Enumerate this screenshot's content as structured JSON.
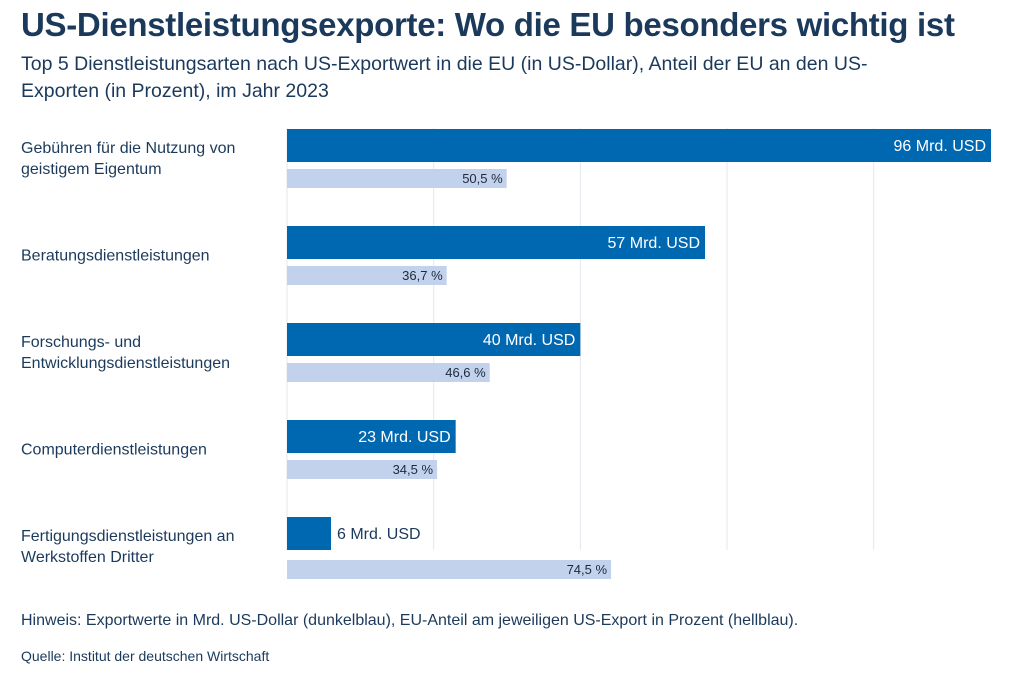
{
  "title": "US-Dienstleistungsexporte: Wo die EU besonders wichtig ist",
  "subtitle": "Top 5 Dienstleistungsarten nach US-Exportwert in die EU (in US-Dollar), Anteil der EU an den US-Exporten (in Prozent), im Jahr 2023",
  "note": "Hinweis: Exportwerte in Mrd. US-Dollar (dunkelblau), EU-Anteil am jeweiligen US-Export in Prozent (hellblau).",
  "source": "Quelle: Institut der deutschen Wirtschaft",
  "chart_data": {
    "type": "bar",
    "orientation": "horizontal",
    "categories": [
      "Gebühren für die Nutzung von geistigem Eigentum",
      "Beratungsdienstleistungen",
      "Forschungs- und Entwicklungsdienstleistungen",
      "Computerdienstleistungen",
      "Fertigungsdienstleistungen an Werkstoffen Dritter"
    ],
    "series": [
      {
        "values": [
          96,
          57,
          40,
          23,
          6
        ],
        "labels": [
          "96 Mrd. USD",
          "57 Mrd. USD",
          "40 Mrd. USD",
          "23 Mrd. USD",
          "6 Mrd. USD"
        ],
        "color": "#0067b1"
      },
      {
        "values": [
          50.5,
          36.7,
          46.6,
          34.5,
          74.5
        ],
        "labels": [
          "50,5 %",
          "36,7 %",
          "46,6 %",
          "34,5 %",
          "74,5 %"
        ],
        "color": "#c3d2ec"
      }
    ],
    "grid": true
  }
}
